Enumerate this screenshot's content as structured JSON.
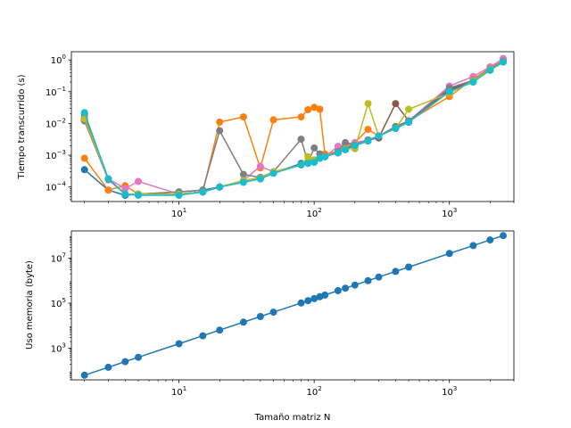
{
  "chart_data": [
    {
      "type": "line",
      "title": "",
      "xlabel": "",
      "ylabel": "Tiempo transcurrido (s)",
      "xscale": "log",
      "yscale": "log",
      "xlim": [
        1.6,
        3000
      ],
      "ylim": [
        3.5e-05,
        1.8
      ],
      "grid": false,
      "markers": "circle",
      "x_ticks": [
        {
          "value": 10,
          "base": "10",
          "exp": "1"
        },
        {
          "value": 100,
          "base": "10",
          "exp": "2"
        },
        {
          "value": 1000,
          "base": "10",
          "exp": "3"
        }
      ],
      "y_ticks": [
        {
          "value": 0.0001,
          "base": "10",
          "exp": "−4"
        },
        {
          "value": 0.001,
          "base": "10",
          "exp": "−3"
        },
        {
          "value": 0.01,
          "base": "10",
          "exp": "−2"
        },
        {
          "value": 0.1,
          "base": "10",
          "exp": "−1"
        },
        {
          "value": 1,
          "base": "10",
          "exp": "0"
        }
      ],
      "x": [
        2,
        3,
        4,
        5,
        10,
        15,
        20,
        30,
        40,
        50,
        80,
        90,
        100,
        110,
        120,
        150,
        170,
        200,
        250,
        300,
        400,
        500,
        1000,
        1500,
        2000,
        2500
      ],
      "series": [
        {
          "color": "#1f77b4",
          "values": [
            0.00035,
            8e-05,
            5.5e-05,
            6e-05,
            7e-05,
            8e-05,
            0.0001,
            0.00015,
            0.0002,
            0.00028,
            0.00055,
            0.0006,
            0.0007,
            0.0008,
            0.0009,
            0.0013,
            0.0016,
            0.0022,
            0.003,
            0.004,
            0.007,
            0.011,
            0.12,
            0.22,
            0.5,
            0.95
          ]
        },
        {
          "color": "#ff7f0e",
          "values": [
            0.0008,
            8e-05,
            0.00011,
            6e-05,
            6e-05,
            7e-05,
            0.011,
            0.016,
            0.0004,
            0.013,
            0.016,
            0.027,
            0.032,
            0.028,
            0.0011,
            0.0013,
            0.0018,
            0.0025,
            0.0065,
            0.004,
            0.008,
            0.012,
            0.07,
            0.25,
            0.55,
            0.95
          ]
        },
        {
          "color": "#2ca02c",
          "values": [
            0.02,
            0.00018,
            6e-05,
            6e-05,
            6e-05,
            7e-05,
            0.0001,
            0.00015,
            0.00018,
            0.00028,
            0.0005,
            0.0006,
            0.0007,
            0.0008,
            0.0009,
            0.0012,
            0.0015,
            0.002,
            0.0028,
            0.004,
            0.007,
            0.011,
            0.1,
            0.21,
            0.48,
            0.85
          ]
        },
        {
          "color": "#d62728",
          "values": [
            0.015,
            0.00018,
            6e-05,
            6e-05,
            6e-05,
            7e-05,
            0.0001,
            0.00016,
            0.00019,
            0.0003,
            0.0005,
            0.0006,
            0.0007,
            0.0008,
            0.0009,
            0.0012,
            0.0016,
            0.0021,
            0.0029,
            0.004,
            0.007,
            0.011,
            0.11,
            0.22,
            0.5,
            0.9
          ]
        },
        {
          "color": "#9467bd",
          "values": [
            0.012,
            0.00017,
            6e-05,
            6e-05,
            6e-05,
            7e-05,
            0.0001,
            0.00015,
            0.00018,
            0.00028,
            0.0005,
            0.0006,
            0.0007,
            0.0008,
            0.0009,
            0.0012,
            0.0015,
            0.002,
            0.0028,
            0.004,
            0.007,
            0.011,
            0.1,
            0.21,
            0.5,
            0.9
          ]
        },
        {
          "color": "#8c564b",
          "values": [
            0.013,
            0.00018,
            6e-05,
            6e-05,
            6e-05,
            7e-05,
            0.0001,
            0.00016,
            0.00019,
            0.0003,
            0.0005,
            0.0006,
            0.0007,
            0.0008,
            0.0009,
            0.0012,
            0.0016,
            0.0021,
            0.003,
            0.0035,
            0.042,
            0.012,
            0.11,
            0.22,
            0.5,
            0.9
          ]
        },
        {
          "color": "#e377c2",
          "values": [
            0.014,
            0.00018,
            9e-05,
            0.00015,
            6e-05,
            7e-05,
            0.0001,
            0.00016,
            0.00045,
            0.0003,
            0.0005,
            0.0006,
            0.0007,
            0.0008,
            0.0009,
            0.0019,
            0.0022,
            0.0025,
            0.003,
            0.004,
            0.008,
            0.012,
            0.15,
            0.3,
            0.6,
            1.1
          ]
        },
        {
          "color": "#7f7f7f",
          "values": [
            0.013,
            0.00018,
            6e-05,
            6e-05,
            7e-05,
            8e-05,
            0.0059,
            0.00025,
            0.0002,
            0.0003,
            0.0032,
            0.0006,
            0.0017,
            0.0011,
            0.0009,
            0.0013,
            0.0025,
            0.0021,
            0.003,
            0.004,
            0.008,
            0.012,
            0.13,
            0.23,
            0.52,
            0.9
          ]
        },
        {
          "color": "#bcbd22",
          "values": [
            0.014,
            0.00018,
            6e-05,
            6e-05,
            6e-05,
            7e-05,
            0.0001,
            0.00016,
            0.00019,
            0.0003,
            0.0005,
            0.0009,
            0.0007,
            0.0008,
            0.0009,
            0.0012,
            0.0016,
            0.0016,
            0.042,
            0.004,
            0.007,
            0.028,
            0.09,
            0.22,
            0.5,
            0.85
          ]
        },
        {
          "color": "#17becf",
          "values": [
            0.022,
            0.00018,
            6e-05,
            5.5e-05,
            5.5e-05,
            7e-05,
            0.0001,
            0.00014,
            0.00018,
            0.00027,
            0.0005,
            0.00055,
            0.0006,
            0.0008,
            0.0009,
            0.0012,
            0.0015,
            0.002,
            0.0028,
            0.004,
            0.007,
            0.011,
            0.1,
            0.2,
            0.47,
            0.85
          ]
        }
      ]
    },
    {
      "type": "line",
      "title": "",
      "xlabel": "Tamaño matriz N",
      "ylabel": "Uso memoria (byte)",
      "xscale": "log",
      "yscale": "log",
      "xlim": [
        1.6,
        3000
      ],
      "ylim": [
        40,
        160000000
      ],
      "grid": false,
      "markers": "circle",
      "x_ticks": [
        {
          "value": 10,
          "base": "10",
          "exp": "1"
        },
        {
          "value": 100,
          "base": "10",
          "exp": "2"
        },
        {
          "value": 1000,
          "base": "10",
          "exp": "3"
        }
      ],
      "y_ticks": [
        {
          "value": 1000,
          "base": "10",
          "exp": "3"
        },
        {
          "value": 100000,
          "base": "10",
          "exp": "5"
        },
        {
          "value": 10000000,
          "base": "10",
          "exp": "7"
        }
      ],
      "x": [
        2,
        3,
        4,
        5,
        10,
        15,
        20,
        30,
        40,
        50,
        80,
        90,
        100,
        110,
        120,
        150,
        170,
        200,
        250,
        300,
        400,
        500,
        1000,
        1500,
        2000,
        2500
      ],
      "series": [
        {
          "color": "#1f77b4",
          "values": [
            64,
            144,
            256,
            400,
            1600,
            3600,
            6400,
            14400,
            25600,
            40000,
            102400,
            129600,
            160000,
            193600,
            230400,
            360000,
            462400,
            640000,
            1000000,
            1440000,
            2560000,
            4000000,
            16000000,
            36000000,
            64000000,
            100000000
          ]
        }
      ]
    }
  ]
}
